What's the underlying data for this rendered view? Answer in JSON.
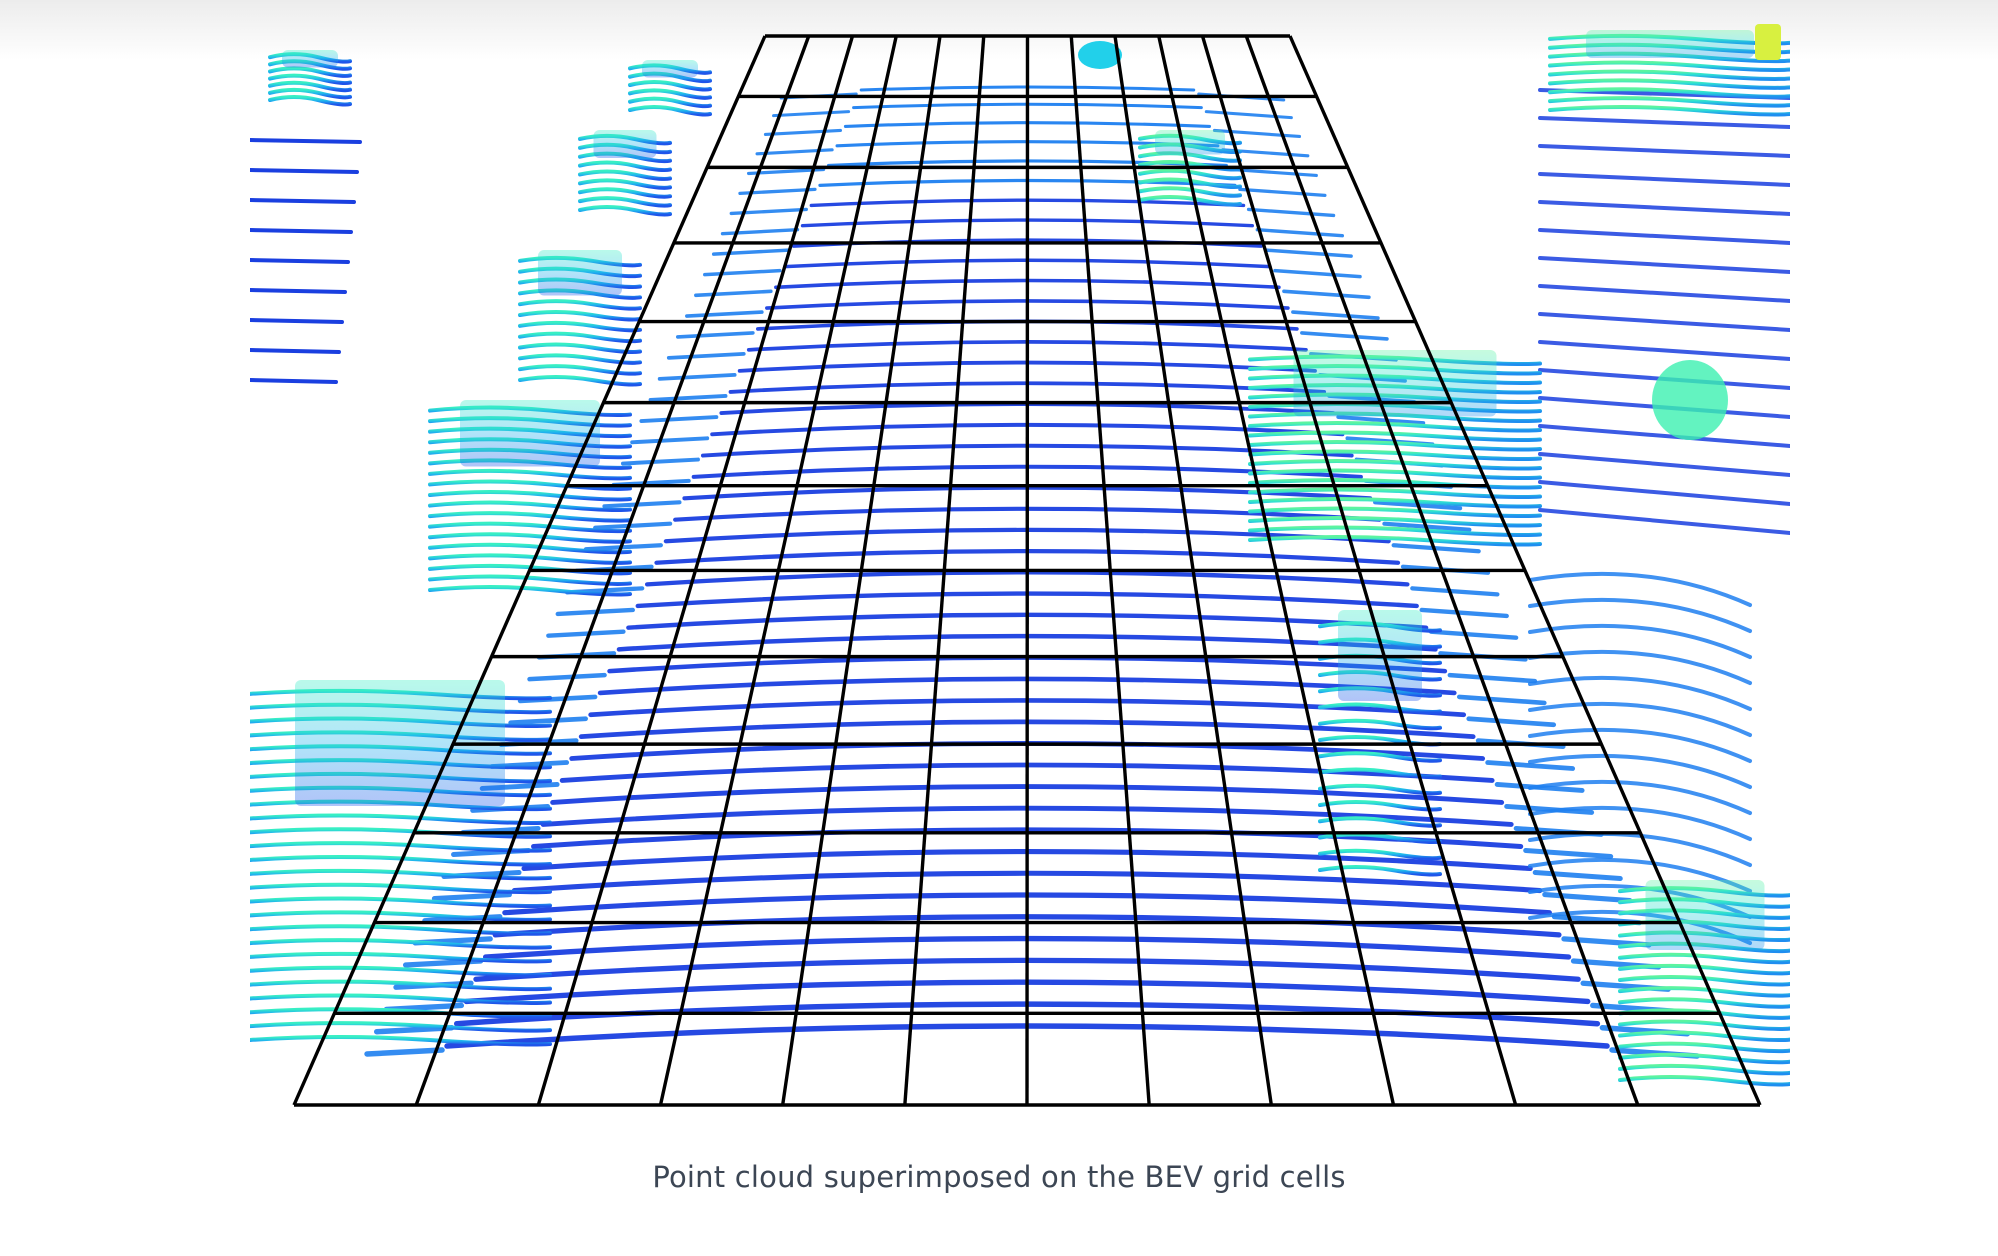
{
  "caption": "Point cloud superimposed on the BEV grid cells",
  "figure": {
    "kind": "lidar point cloud with BEV grid overlay",
    "grid_columns": 12,
    "grid_rows": 13,
    "grid_color": "#000000",
    "colors": {
      "near_ground": "#1a3fe0",
      "mid": "#1e7ff0",
      "elevated": "#22d0ea",
      "high": "#3cf0b0",
      "peak": "#d8f040"
    }
  }
}
